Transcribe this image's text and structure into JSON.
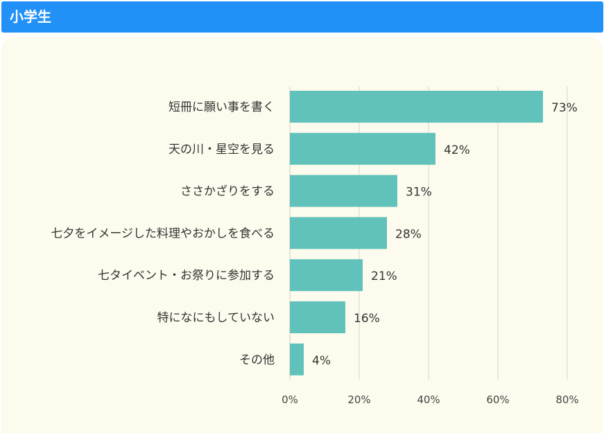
{
  "header": {
    "title": "小学生"
  },
  "colors": {
    "header_bg": "#2191f7",
    "panel_bg": "#fdfbed",
    "bar": "#61c2bb",
    "grid": "#dedcd2"
  },
  "chart_data": {
    "type": "bar",
    "orientation": "horizontal",
    "categories": [
      "短冊に願い事を書く",
      "天の川・星空を見る",
      "ささかざりをする",
      "七夕をイメージした料理やおかしを食べる",
      "七タイベント・お祭りに参加する",
      "特になにもしていない",
      "その他"
    ],
    "values": [
      73,
      42,
      31,
      28,
      21,
      16,
      4
    ],
    "value_labels": [
      "73%",
      "42%",
      "31%",
      "28%",
      "21%",
      "16%",
      "4%"
    ],
    "xlim": [
      0,
      80
    ],
    "xticks": [
      0,
      20,
      40,
      60,
      80
    ],
    "xtick_labels": [
      "0%",
      "20%",
      "40%",
      "60%",
      "80%"
    ],
    "grid": true
  }
}
